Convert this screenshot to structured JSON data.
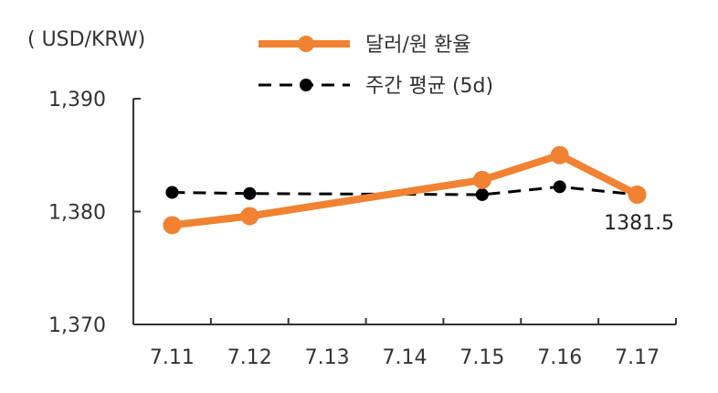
{
  "chart_data": {
    "type": "line",
    "title": "",
    "xlabel": "",
    "ylabel": "( USD/KRW)",
    "categories": [
      "7.11",
      "7.12",
      "7.13",
      "7.14",
      "7.15",
      "7.16",
      "7.17"
    ],
    "ylim": [
      1370,
      1390
    ],
    "yticks": [
      1370,
      1380,
      1390
    ],
    "ytick_labels": [
      "1,370",
      "1,380",
      "1,390"
    ],
    "grid": false,
    "legend_position": "top",
    "series": [
      {
        "name": "달러/원 환율",
        "style": "solid",
        "color": "#F08232",
        "points": [
          {
            "x": "7.11",
            "y": 1378.8
          },
          {
            "x": "7.12",
            "y": 1379.6
          },
          {
            "x": "7.15",
            "y": 1382.8
          },
          {
            "x": "7.16",
            "y": 1385.0
          },
          {
            "x": "7.17",
            "y": 1381.5
          }
        ]
      },
      {
        "name": "주간 평균 (5d)",
        "style": "dashed",
        "color": "#000000",
        "points": [
          {
            "x": "7.11",
            "y": 1381.7
          },
          {
            "x": "7.12",
            "y": 1381.6
          },
          {
            "x": "7.15",
            "y": 1381.5
          },
          {
            "x": "7.16",
            "y": 1382.2
          },
          {
            "x": "7.17",
            "y": 1381.5
          }
        ]
      }
    ],
    "annotations": [
      {
        "x": "7.17",
        "y": 1381.5,
        "text": "1381.5"
      }
    ]
  }
}
